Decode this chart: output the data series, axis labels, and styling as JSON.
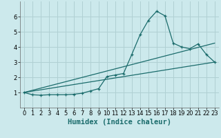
{
  "xlabel": "Humidex (Indice chaleur)",
  "xlim": [
    -0.5,
    23.5
  ],
  "ylim": [
    0,
    7
  ],
  "background_color": "#cce9ec",
  "grid_color": "#b0d0d3",
  "line_color": "#1a6b6b",
  "line1_x": [
    0,
    1,
    2,
    3,
    4,
    5,
    6,
    7,
    8,
    9,
    10,
    11,
    12,
    13,
    14,
    15,
    16,
    17,
    18,
    19,
    20,
    21,
    22,
    23
  ],
  "line1_y": [
    1.0,
    0.85,
    0.82,
    0.85,
    0.85,
    0.85,
    0.88,
    0.95,
    1.1,
    1.25,
    2.05,
    2.15,
    2.25,
    3.5,
    4.8,
    5.75,
    6.35,
    6.05,
    4.25,
    4.0,
    3.88,
    4.2,
    3.5,
    3.0
  ],
  "line2_x": [
    0,
    23
  ],
  "line2_y": [
    1.0,
    3.0
  ],
  "line3_x": [
    0,
    23
  ],
  "line3_y": [
    1.0,
    4.25
  ],
  "yticks": [
    1,
    2,
    3,
    4,
    5,
    6
  ],
  "xticks": [
    0,
    1,
    2,
    3,
    4,
    5,
    6,
    7,
    8,
    9,
    10,
    11,
    12,
    13,
    14,
    15,
    16,
    17,
    18,
    19,
    20,
    21,
    22,
    23
  ],
  "tick_fontsize": 6,
  "xlabel_fontsize": 7.5
}
